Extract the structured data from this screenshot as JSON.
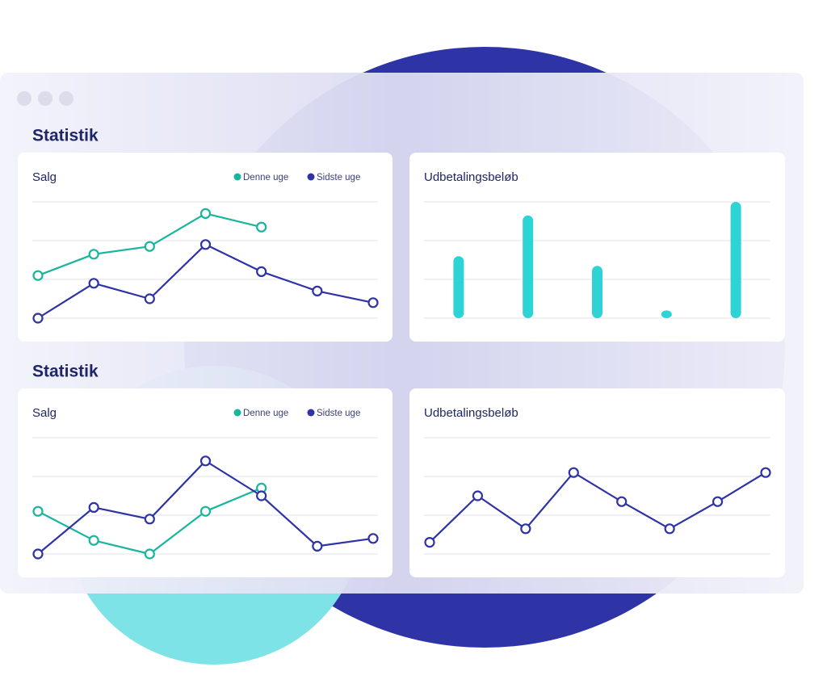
{
  "sections": [
    {
      "title": "Statistik"
    },
    {
      "title": "Statistik"
    }
  ],
  "chart_data": [
    {
      "type": "line",
      "title": "Salg",
      "categories": [
        null,
        null,
        null,
        null,
        null,
        null,
        null
      ],
      "series": [
        {
          "name": "Denne uge",
          "color": "#19b59c",
          "values": [
            1.1,
            1.65,
            1.85,
            2.7,
            2.35,
            null,
            null
          ]
        },
        {
          "name": "Sidste uge",
          "color": "#2e33a6",
          "values": [
            0,
            0.9,
            0.5,
            1.9,
            1.2,
            0.7,
            0.4
          ]
        }
      ],
      "ylim": [
        0,
        3
      ],
      "yticks": [
        0,
        1,
        2,
        3
      ],
      "grid": true
    },
    {
      "type": "bar",
      "title": "Udbetalingsbeløb",
      "categories": [
        null,
        null,
        null,
        null,
        null
      ],
      "values": [
        1.6,
        2.65,
        1.35,
        0.2,
        3.0
      ],
      "color": "#2ed3d6",
      "ylim": [
        0,
        3
      ],
      "yticks": [
        0,
        1,
        2,
        3
      ],
      "grid": true
    },
    {
      "type": "line",
      "title": "Salg",
      "categories": [
        null,
        null,
        null,
        null,
        null,
        null,
        null
      ],
      "series": [
        {
          "name": "Denne uge",
          "color": "#19b59c",
          "values": [
            1.1,
            0.35,
            0,
            1.1,
            1.7,
            null,
            null
          ]
        },
        {
          "name": "Sidste uge",
          "color": "#2e33a6",
          "values": [
            0,
            1.2,
            0.9,
            2.4,
            1.5,
            0.2,
            0.4
          ]
        }
      ],
      "ylim": [
        0,
        3
      ],
      "yticks": [
        0,
        1,
        2,
        3
      ],
      "grid": true
    },
    {
      "type": "line",
      "title": "Udbetalingsbeløb",
      "categories": [
        null,
        null,
        null,
        null,
        null,
        null,
        null,
        null
      ],
      "series": [
        {
          "color": "#2e33a6",
          "values": [
            0.3,
            1.5,
            0.65,
            2.1,
            1.35,
            0.65,
            1.35,
            2.1
          ]
        }
      ],
      "ylim": [
        0,
        3
      ],
      "yticks": [
        0,
        1,
        2,
        3
      ],
      "grid": true
    }
  ]
}
